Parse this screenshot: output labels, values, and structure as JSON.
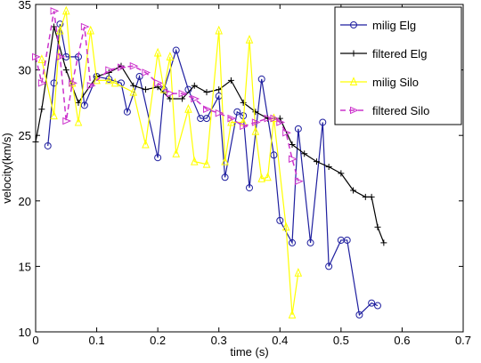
{
  "chart_data": {
    "type": "line",
    "xlabel": "time (s)",
    "ylabel": "velocity(km/s)",
    "xlim": [
      0,
      0.7
    ],
    "ylim": [
      10,
      35
    ],
    "xticks": [
      0,
      0.1,
      0.2,
      0.3,
      0.4,
      0.5,
      0.6,
      0.7
    ],
    "yticks": [
      10,
      15,
      20,
      25,
      30,
      35
    ],
    "legend": "upper right",
    "series": [
      {
        "name": "milig Elg",
        "color": "#1f1f9f",
        "marker": "circle",
        "dash": false,
        "x": [
          0.02,
          0.03,
          0.04,
          0.05,
          0.07,
          0.08,
          0.1,
          0.12,
          0.14,
          0.15,
          0.17,
          0.2,
          0.21,
          0.23,
          0.25,
          0.27,
          0.28,
          0.3,
          0.31,
          0.33,
          0.34,
          0.35,
          0.37,
          0.39,
          0.4,
          0.42,
          0.43,
          0.45,
          0.47,
          0.48,
          0.5,
          0.51,
          0.53,
          0.55,
          0.56
        ],
        "values": [
          24.2,
          29,
          33.5,
          31,
          31,
          27.3,
          29.5,
          29.3,
          29,
          26.8,
          29.5,
          23.3,
          28.5,
          31.5,
          28.5,
          26.3,
          26.3,
          28,
          21.8,
          26.8,
          26.5,
          21,
          29.3,
          23.5,
          18.5,
          16.8,
          25.5,
          16.8,
          26,
          15,
          17,
          17,
          11.3,
          12.2,
          12
        ]
      },
      {
        "name": "filtered Elg",
        "color": "#000000",
        "marker": "plus",
        "dash": false,
        "x": [
          0,
          0.01,
          0.03,
          0.05,
          0.07,
          0.1,
          0.12,
          0.14,
          0.16,
          0.18,
          0.2,
          0.22,
          0.24,
          0.26,
          0.28,
          0.3,
          0.32,
          0.34,
          0.36,
          0.38,
          0.4,
          0.42,
          0.44,
          0.46,
          0.48,
          0.5,
          0.52,
          0.54,
          0.55,
          0.56,
          0.57
        ],
        "values": [
          24.5,
          27,
          33.3,
          30,
          27.5,
          29.5,
          29.8,
          30.3,
          28.8,
          28.5,
          28.7,
          27.8,
          27.8,
          28.8,
          28.3,
          28.5,
          29.2,
          27.5,
          26.8,
          26.3,
          26.3,
          24.3,
          23.6,
          23,
          22.6,
          22.1,
          20.8,
          20.3,
          20.3,
          18,
          16.8
        ]
      },
      {
        "name": "milig Silo",
        "color": "#ffff00",
        "marker": "triangle",
        "dash": false,
        "x": [
          0.01,
          0.03,
          0.04,
          0.05,
          0.06,
          0.07,
          0.09,
          0.1,
          0.12,
          0.13,
          0.16,
          0.18,
          0.2,
          0.21,
          0.22,
          0.23,
          0.25,
          0.26,
          0.28,
          0.3,
          0.31,
          0.32,
          0.34,
          0.35,
          0.36,
          0.37,
          0.38,
          0.39,
          0.41,
          0.42,
          0.43
        ],
        "values": [
          30.8,
          26.5,
          33,
          34.5,
          29,
          26,
          33,
          29.2,
          29.2,
          29,
          28.3,
          24.3,
          31.3,
          28.5,
          31,
          23.6,
          27,
          23,
          22.8,
          33,
          23,
          26,
          26,
          32.3,
          25.3,
          21.7,
          21.8,
          26.3,
          18,
          11.3,
          14.5
        ]
      },
      {
        "name": "filtered Silo",
        "color": "#cc33cc",
        "marker": "right-triangle",
        "dash": true,
        "x": [
          0,
          0.01,
          0.03,
          0.04,
          0.05,
          0.06,
          0.08,
          0.09,
          0.12,
          0.14,
          0.16,
          0.18,
          0.2,
          0.22,
          0.24,
          0.26,
          0.28,
          0.3,
          0.32,
          0.34,
          0.36,
          0.38,
          0.39,
          0.4,
          0.41,
          0.42,
          0.43
        ],
        "values": [
          31,
          29,
          34.5,
          31,
          26.1,
          29,
          33.3,
          28.8,
          30,
          30.2,
          30.3,
          29.8,
          29,
          28.2,
          28.2,
          27.8,
          27,
          26.7,
          26.3,
          25.7,
          26,
          26.3,
          26.3,
          26,
          25.2,
          23.2,
          21.5
        ]
      }
    ]
  }
}
